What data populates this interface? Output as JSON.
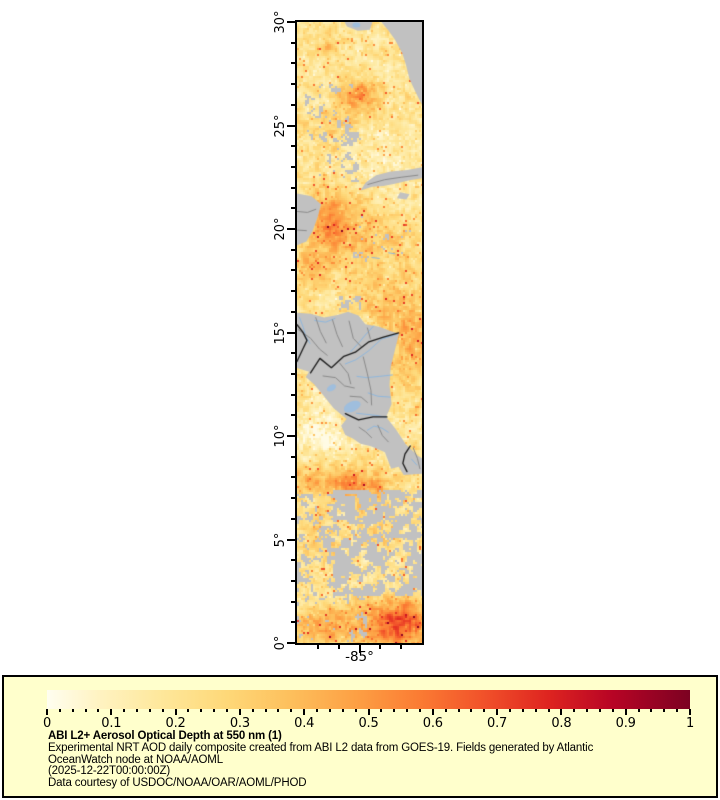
{
  "map": {
    "lon_label": "-85°",
    "lat_range": [
      0,
      30
    ],
    "lon_range": [
      -88,
      -82
    ],
    "lat_ticks": [
      {
        "value": 0,
        "label": "0°"
      },
      {
        "value": 5,
        "label": "5°"
      },
      {
        "value": 10,
        "label": "10°"
      },
      {
        "value": 15,
        "label": "15°"
      },
      {
        "value": 20,
        "label": "20°"
      },
      {
        "value": 25,
        "label": "25°"
      },
      {
        "value": 30,
        "label": "30°"
      }
    ],
    "lon_major_ticks": [
      -85
    ],
    "lon_minor_ticks": [
      -87,
      -86,
      -84,
      -83
    ],
    "colors": {
      "land": "#c1c1c1",
      "river": "#8fb7dd",
      "lake": "#9fbedd",
      "border_country": "#1c1c1c",
      "border_admin": "#8a8a8a",
      "frame": "#000000",
      "background": "#ffffff"
    },
    "colormap_stops": [
      [
        0.0,
        "#fffef0"
      ],
      [
        0.08,
        "#fff3c2"
      ],
      [
        0.18,
        "#fee79a"
      ],
      [
        0.28,
        "#fed878"
      ],
      [
        0.38,
        "#fdbf5c"
      ],
      [
        0.48,
        "#fda044"
      ],
      [
        0.58,
        "#fb7b33"
      ],
      [
        0.68,
        "#f1512a"
      ],
      [
        0.78,
        "#de2420"
      ],
      [
        0.88,
        "#b70425"
      ],
      [
        1.0,
        "#7c0222"
      ]
    ],
    "aod_base": 0.19,
    "aod_blobs": [
      [
        -86.5,
        28.85,
        0.55,
        0.45,
        0.17
      ],
      [
        -85.0,
        26.4,
        0.95,
        0.8,
        0.34
      ],
      [
        -86.3,
        24.8,
        1.3,
        1.0,
        0.1
      ],
      [
        -86.3,
        20.4,
        1.15,
        1.5,
        0.28
      ],
      [
        -84.6,
        19.2,
        2.4,
        1.8,
        0.12
      ],
      [
        -87.3,
        18.0,
        0.8,
        1.5,
        0.12
      ],
      [
        -82.5,
        14.5,
        1.3,
        2.4,
        0.22
      ],
      [
        -83.6,
        16.5,
        1.5,
        1.3,
        0.1
      ],
      [
        -85.2,
        7.65,
        1.7,
        0.85,
        0.34
      ],
      [
        -87.7,
        7.9,
        1.0,
        0.8,
        0.16
      ],
      [
        -87.0,
        4.9,
        1.1,
        1.3,
        0.1
      ],
      [
        -84.0,
        5.6,
        1.3,
        1.2,
        0.12
      ],
      [
        -83.2,
        0.9,
        1.7,
        1.2,
        0.5
      ],
      [
        -86.6,
        0.8,
        1.5,
        1.0,
        0.26
      ],
      [
        -86.9,
        10.4,
        1.5,
        1.7,
        -0.11
      ],
      [
        -84.3,
        23.3,
        1.7,
        1.3,
        -0.06
      ]
    ],
    "cloud_bands": [
      [
        2.3,
        7.35,
        -86.25,
        -82.0,
        0.45
      ],
      [
        1.5,
        7.2,
        -88.0,
        -86.15,
        0.6
      ],
      [
        0.0,
        2.4,
        -88.0,
        -84.6,
        0.66
      ],
      [
        23.7,
        27.05,
        -87.65,
        -85.35,
        0.655
      ],
      [
        22.3,
        24.7,
        -86.9,
        -84.9,
        0.7
      ],
      [
        18.4,
        20.9,
        -85.3,
        -82.3,
        0.745
      ],
      [
        16.05,
        16.75,
        -86.0,
        -84.95,
        0.52
      ]
    ],
    "land_polygons": [
      {
        "name": "florida-peninsula",
        "pts": [
          [
            -83.95,
            30
          ],
          [
            -83.62,
            29.6
          ],
          [
            -83.3,
            29.15
          ],
          [
            -82.95,
            28.5
          ],
          [
            -82.76,
            27.9
          ],
          [
            -82.6,
            27.25
          ],
          [
            -82.3,
            26.6
          ],
          [
            -82,
            26
          ],
          [
            -82,
            30
          ]
        ]
      },
      {
        "name": "florida-panhandle",
        "pts": [
          [
            -85.72,
            30
          ],
          [
            -84.38,
            30
          ],
          [
            -84.5,
            29.62
          ],
          [
            -85.08,
            29.58
          ],
          [
            -85.6,
            29.78
          ]
        ]
      },
      {
        "name": "cuba-west",
        "pts": [
          [
            -84.95,
            21.86
          ],
          [
            -84.4,
            22.04
          ],
          [
            -83.85,
            22.08
          ],
          [
            -83.25,
            22.2
          ],
          [
            -82.6,
            22.35
          ],
          [
            -82,
            22.45
          ],
          [
            -82,
            22.98
          ],
          [
            -82.7,
            22.85
          ],
          [
            -83.5,
            22.78
          ],
          [
            -84.2,
            22.6
          ],
          [
            -84.7,
            22.25
          ]
        ]
      },
      {
        "name": "isla-juventud",
        "pts": [
          [
            -83.2,
            21.48
          ],
          [
            -82.75,
            21.42
          ],
          [
            -82.6,
            21.68
          ],
          [
            -83.05,
            21.78
          ]
        ]
      },
      {
        "name": "yucatan-coast",
        "pts": [
          [
            -88,
            21.72
          ],
          [
            -87.3,
            21.58
          ],
          [
            -86.85,
            21.2
          ],
          [
            -87,
            20.6
          ],
          [
            -87.25,
            19.9
          ],
          [
            -87.55,
            19.4
          ],
          [
            -88,
            19.22
          ]
        ]
      },
      {
        "name": "central-america",
        "pts": [
          [
            -88,
            15.95
          ],
          [
            -87.35,
            15.9
          ],
          [
            -86.7,
            15.72
          ],
          [
            -86.05,
            15.85
          ],
          [
            -85.55,
            16
          ],
          [
            -85.05,
            15.82
          ],
          [
            -84.72,
            15.4
          ],
          [
            -84.05,
            15.28
          ],
          [
            -83.45,
            15.05
          ],
          [
            -83.1,
            14.95
          ],
          [
            -83.3,
            14.15
          ],
          [
            -83.5,
            13.35
          ],
          [
            -83.56,
            12.45
          ],
          [
            -83.46,
            11.55
          ],
          [
            -83.72,
            10.92
          ],
          [
            -83.25,
            10.32
          ],
          [
            -82.78,
            9.6
          ],
          [
            -82.2,
            9.05
          ],
          [
            -82,
            8.92
          ],
          [
            -82,
            8.18
          ],
          [
            -82.88,
            8.12
          ],
          [
            -83.12,
            8.52
          ],
          [
            -83.48,
            8.42
          ],
          [
            -83.78,
            9.22
          ],
          [
            -84.45,
            9.5
          ],
          [
            -84.95,
            9.62
          ],
          [
            -85.32,
            9.88
          ],
          [
            -85.68,
            10.05
          ],
          [
            -85.88,
            10.5
          ],
          [
            -85.62,
            10.82
          ],
          [
            -86.25,
            11.35
          ],
          [
            -86.72,
            11.95
          ],
          [
            -87.18,
            12.5
          ],
          [
            -87.58,
            12.85
          ],
          [
            -87.42,
            13.1
          ],
          [
            -88,
            13.28
          ]
        ]
      }
    ],
    "borders_country": [
      [
        [
          -88,
          15.38
        ],
        [
          -87.72,
          15.02
        ],
        [
          -87.52,
          14.62
        ],
        [
          -87.72,
          14.2
        ],
        [
          -87.9,
          13.82
        ],
        [
          -88,
          13.6
        ]
      ],
      [
        [
          -87.35,
          13.05
        ],
        [
          -86.9,
          13.75
        ],
        [
          -86.35,
          13.3
        ],
        [
          -85.75,
          13.85
        ],
        [
          -85.2,
          14.05
        ],
        [
          -84.55,
          14.55
        ],
        [
          -83.85,
          14.78
        ],
        [
          -83.12,
          14.98
        ]
      ],
      [
        [
          -85.68,
          11.08
        ],
        [
          -85.05,
          10.78
        ],
        [
          -84.35,
          10.92
        ],
        [
          -83.68,
          10.92
        ]
      ],
      [
        [
          -82.56,
          9.52
        ],
        [
          -82.82,
          9.12
        ],
        [
          -82.92,
          8.68
        ],
        [
          -82.72,
          8.28
        ]
      ]
    ],
    "borders_admin": [
      [
        [
          -87.95,
          15.15
        ],
        [
          -87.35,
          14.72
        ],
        [
          -86.92,
          14.2
        ],
        [
          -86.55,
          13.9
        ]
      ],
      [
        [
          -87.1,
          15.72
        ],
        [
          -86.88,
          15.05
        ],
        [
          -86.6,
          14.5
        ]
      ],
      [
        [
          -86.3,
          15.62
        ],
        [
          -86.08,
          14.9
        ],
        [
          -85.82,
          14.32
        ]
      ],
      [
        [
          -85.5,
          15.55
        ],
        [
          -85.3,
          14.72
        ],
        [
          -84.92,
          14.32
        ]
      ],
      [
        [
          -84.62,
          15.22
        ],
        [
          -84.48,
          14.7
        ]
      ],
      [
        [
          -86.75,
          12.9
        ],
        [
          -86.15,
          12.82
        ],
        [
          -85.72,
          12.42
        ],
        [
          -85.25,
          12.32
        ]
      ],
      [
        [
          -85.95,
          13.52
        ],
        [
          -85.55,
          13.02
        ],
        [
          -85.42,
          12.52
        ]
      ],
      [
        [
          -84.82,
          13.82
        ],
        [
          -84.62,
          13
        ],
        [
          -84.45,
          12.2
        ],
        [
          -84.42,
          11.5
        ]
      ],
      [
        [
          -85.45,
          11.92
        ],
        [
          -84.92,
          11.88
        ],
        [
          -84.62,
          11.62
        ]
      ],
      [
        [
          -85.02,
          10.42
        ],
        [
          -84.7,
          10.2
        ],
        [
          -84.42,
          9.92
        ]
      ],
      [
        [
          -84.12,
          10.52
        ],
        [
          -83.9,
          10.02
        ],
        [
          -83.62,
          9.72
        ]
      ],
      [
        [
          -82.42,
          9.42
        ],
        [
          -82.22,
          8.92
        ],
        [
          -82.1,
          8.42
        ]
      ],
      [
        [
          -84.6,
          22.15
        ],
        [
          -83.8,
          22.38
        ],
        [
          -83,
          22.5
        ],
        [
          -82.2,
          22.6
        ]
      ],
      [
        [
          -88,
          20.85
        ],
        [
          -87.5,
          20.8
        ],
        [
          -87.1,
          20.95
        ]
      ],
      [
        [
          -88,
          19.95
        ],
        [
          -87.55,
          19.92
        ]
      ]
    ],
    "rivers": [
      [
        [
          -87.88,
          15.72
        ],
        [
          -87.7,
          15.25
        ],
        [
          -87.58,
          14.8
        ],
        [
          -87.38,
          14.48
        ]
      ],
      [
        [
          -87.15,
          15.58
        ],
        [
          -86.62,
          15.5
        ],
        [
          -86.18,
          15.68
        ]
      ],
      [
        [
          -84.32,
          15.32
        ],
        [
          -84.72,
          14.88
        ],
        [
          -85.05,
          14.48
        ],
        [
          -85.42,
          14.08
        ]
      ],
      [
        [
          -83.18,
          14.92
        ],
        [
          -83.95,
          14.68
        ],
        [
          -84.58,
          14.1
        ],
        [
          -85.18,
          13.68
        ],
        [
          -85.68,
          13.48
        ]
      ],
      [
        [
          -83.42,
          12.95
        ],
        [
          -84.05,
          12.88
        ],
        [
          -84.65,
          12.82
        ],
        [
          -85.12,
          12.88
        ]
      ],
      [
        [
          -83.52,
          11.88
        ],
        [
          -84.12,
          11.92
        ],
        [
          -84.58,
          12.08
        ]
      ],
      [
        [
          -83.72,
          10.9
        ],
        [
          -84.22,
          11
        ],
        [
          -84.72,
          11.05
        ],
        [
          -85.15,
          11.1
        ]
      ],
      [
        [
          -84.62,
          10.28
        ],
        [
          -84.3,
          10.48
        ],
        [
          -83.92,
          10.38
        ],
        [
          -83.62,
          10.18
        ]
      ],
      [
        [
          -82.5,
          8.88
        ],
        [
          -82.25,
          8.6
        ]
      ],
      [
        [
          -84.4,
          18.62
        ],
        [
          -84.05,
          18.58
        ]
      ],
      [
        [
          -83.6,
          18.85
        ],
        [
          -83.3,
          18.8
        ]
      ]
    ],
    "lakes": [
      [
        -85.35,
        11.42,
        9,
        5,
        -25
      ],
      [
        -86.35,
        12.32,
        5,
        3,
        -30
      ],
      [
        -85.15,
        29.85,
        4,
        2.5,
        0
      ]
    ]
  },
  "legend": {
    "panel_bg": "#ffffcc",
    "title": "ABI L2+ Aerosol Optical Depth at 550 nm (1)",
    "lines": [
      "Experimental NRT AOD daily composite created from ABI L2 data from GOES-19. Fields generated by Atlantic",
      "OceanWatch node at NOAA/AOML",
      "(2025-12-22T00:00:00Z)",
      "Data courtesy of USDOC/NOAA/OAR/AOML/PHOD"
    ],
    "colorbar": {
      "range": [
        0,
        1
      ],
      "major_tick_step": 0.1,
      "minor_tick_step": 0.02,
      "tick_labels": [
        "0",
        "0.1",
        "0.2",
        "0.3",
        "0.4",
        "0.5",
        "0.6",
        "0.7",
        "0.8",
        "0.9",
        "1"
      ]
    }
  },
  "chart_data": {
    "type": "heatmap",
    "title": "ABI L2+ Aerosol Optical Depth at 550 nm (1)",
    "variable": "Aerosol Optical Depth at 550 nm",
    "source": "Experimental NRT AOD daily composite created from ABI L2 data from GOES-19. Fields generated by Atlantic OceanWatch node at NOAA/AOML",
    "timestamp_label": "(2025-12-22T00:00:00Z)",
    "credit": "Data courtesy of USDOC/NOAA/OAR/AOML/PHOD",
    "x_axis": {
      "label": "longitude",
      "range": [
        -88,
        -82
      ],
      "major_ticks": [
        -85
      ],
      "tick_labels": [
        "-85°"
      ],
      "minor_tick_step": 1
    },
    "y_axis": {
      "label": "latitude",
      "range": [
        0,
        30
      ],
      "major_ticks": [
        0,
        5,
        10,
        15,
        20,
        25,
        30
      ],
      "tick_labels": [
        "0°",
        "5°",
        "10°",
        "15°",
        "20°",
        "25°",
        "30°"
      ],
      "minor_tick_step": 1
    },
    "colorbar": {
      "range": [
        0,
        1
      ],
      "tick_labels": [
        "0",
        "0.1",
        "0.2",
        "0.3",
        "0.4",
        "0.5",
        "0.6",
        "0.7",
        "0.8",
        "0.9",
        "1"
      ],
      "colormap": "yellow-orange-red (YlOrRd-like)"
    },
    "legend_position": "bottom",
    "grid": false,
    "notes": "Gray cells = land / no retrieval (clouds); high AOD bands near 26N, 19-21N, 7-8N and 0-2N"
  }
}
